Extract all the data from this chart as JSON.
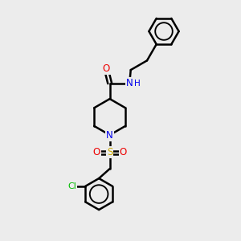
{
  "background_color": "#ececec",
  "atom_colors": {
    "C": "#000000",
    "N": "#0000ee",
    "O": "#ee0000",
    "S": "#ccaa00",
    "Cl": "#00bb00",
    "H": "#0000ee"
  },
  "bond_color": "#000000",
  "bond_width": 1.8,
  "figsize": [
    3.0,
    3.0
  ],
  "dpi": 100
}
